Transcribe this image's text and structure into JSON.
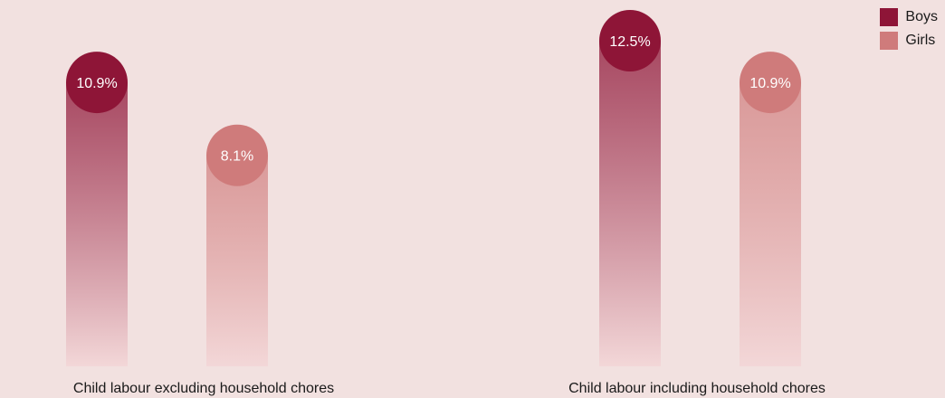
{
  "colors": {
    "background": "#f2e1e0",
    "boys": "#8e1537",
    "girls": "#cf7b7b",
    "bar_fade": "#f3d6d7",
    "text": "#1a1a1a",
    "bubble_text": "#ffffff"
  },
  "legend": {
    "position": "top-right",
    "items": [
      {
        "label": "Boys",
        "color": "#8e1537"
      },
      {
        "label": "Girls",
        "color": "#cf7b7b"
      }
    ]
  },
  "chart_data": {
    "type": "bar",
    "categories": [
      "Child labour excluding household chores",
      "Child labour including household chores"
    ],
    "series": [
      {
        "name": "Boys",
        "values": [
          10.9,
          12.5
        ],
        "labels": [
          "10.9%",
          "12.5%"
        ]
      },
      {
        "name": "Girls",
        "values": [
          8.1,
          10.9
        ],
        "labels": [
          "8.1%",
          "10.9%"
        ]
      }
    ],
    "unit": "%",
    "ylim": [
      0,
      12.5
    ],
    "grid": false,
    "legend": "top-right"
  }
}
